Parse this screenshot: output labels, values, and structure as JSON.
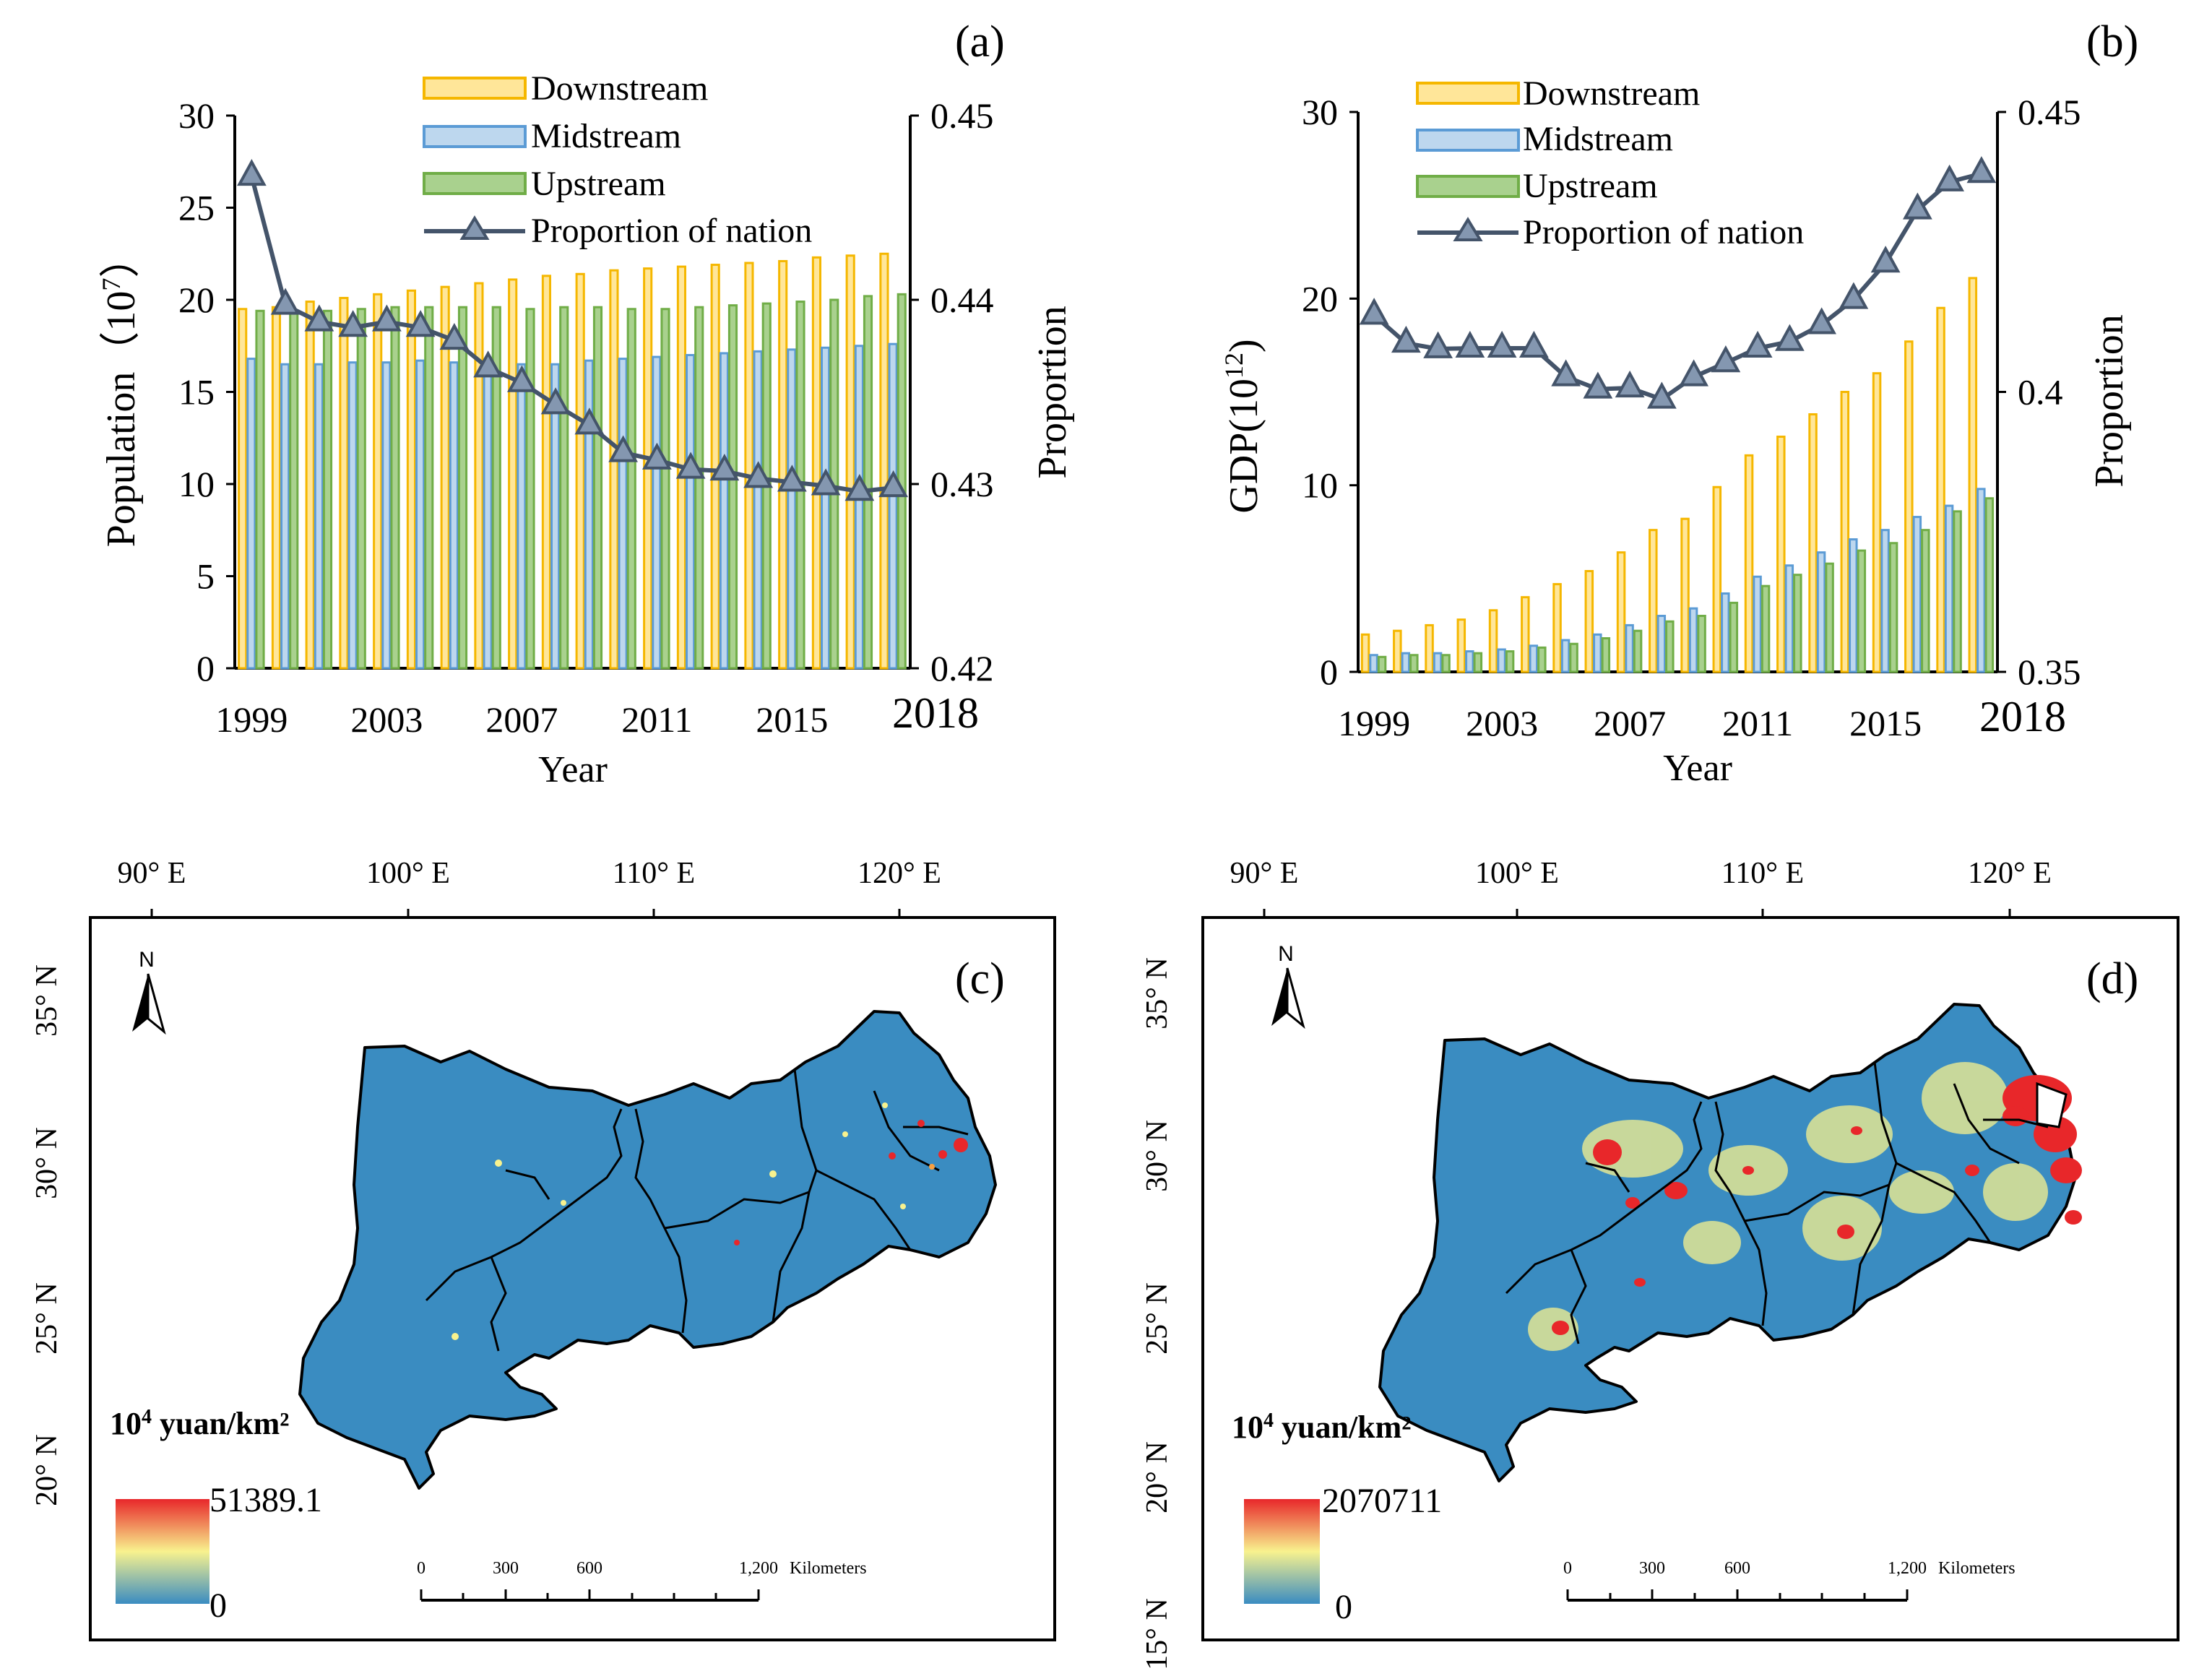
{
  "colors": {
    "downstream_fill": "#FFE699",
    "downstream_edge": "#F5B700",
    "midstream_fill": "#BDD7EE",
    "midstream_edge": "#5B9BD5",
    "upstream_fill": "#A9D18E",
    "upstream_edge": "#70AD47",
    "proportion_line": "#44546A",
    "proportion_marker": "#8497B0",
    "map_base": "#3A8CC1",
    "ramp_high": "#E8272A",
    "ramp_mid": "#F8F28E",
    "ramp_low": "#3A8CC1"
  },
  "chart_data": [
    {
      "panel": "(a)",
      "type": "bar",
      "categories": [
        "1999",
        "2000",
        "2001",
        "2002",
        "2003",
        "2004",
        "2005",
        "2006",
        "2007",
        "2008",
        "2009",
        "2010",
        "2011",
        "2012",
        "2013",
        "2014",
        "2015",
        "2016",
        "2017",
        "2018"
      ],
      "tick_labels": [
        "1999",
        "2003",
        "2007",
        "2011",
        "2015",
        "2018"
      ],
      "series": [
        {
          "name": "Downstream",
          "values": [
            19.5,
            19.6,
            19.9,
            20.1,
            20.3,
            20.5,
            20.7,
            20.9,
            21.1,
            21.3,
            21.4,
            21.6,
            21.7,
            21.8,
            21.9,
            22.0,
            22.1,
            22.3,
            22.4,
            22.5
          ]
        },
        {
          "name": "Midstream",
          "values": [
            16.8,
            16.5,
            16.5,
            16.6,
            16.6,
            16.7,
            16.6,
            16.5,
            16.5,
            16.5,
            16.7,
            16.8,
            16.9,
            17.0,
            17.1,
            17.2,
            17.3,
            17.4,
            17.5,
            17.6
          ]
        },
        {
          "name": "Upstream",
          "values": [
            19.4,
            19.4,
            19.4,
            19.5,
            19.6,
            19.6,
            19.6,
            19.6,
            19.5,
            19.6,
            19.6,
            19.5,
            19.5,
            19.6,
            19.7,
            19.8,
            19.9,
            20.0,
            20.2,
            20.3
          ]
        }
      ],
      "line": {
        "name": "Proportion of nation",
        "values": [
          0.4467,
          0.4397,
          0.4388,
          0.4385,
          0.4388,
          0.4385,
          0.4378,
          0.4363,
          0.4355,
          0.4343,
          0.4332,
          0.4317,
          0.4313,
          0.4308,
          0.4307,
          0.4303,
          0.4301,
          0.4299,
          0.4296,
          0.4298
        ]
      },
      "xlabel": "Year",
      "ylabel": "Population（10⁷）",
      "ylabel_base": "Population（10",
      "ylabel_exp": "7",
      "ylabel_close": "）",
      "y2label": "Proportion",
      "ylim": [
        0,
        30
      ],
      "yticks": [
        "0",
        "5",
        "10",
        "15",
        "20",
        "25",
        "30"
      ],
      "y2lim": [
        0.42,
        0.45
      ],
      "y2ticks": [
        "0.42",
        "0.43",
        "0.44",
        "0.45"
      ],
      "legend": [
        "Downstream",
        "Midstream",
        "Upstream",
        "Proportion of nation"
      ],
      "legend_position": "top-center"
    },
    {
      "panel": "(b)",
      "type": "bar",
      "categories": [
        "1999",
        "2000",
        "2001",
        "2002",
        "2003",
        "2004",
        "2005",
        "2006",
        "2007",
        "2008",
        "2009",
        "2010",
        "2011",
        "2012",
        "2013",
        "2014",
        "2015",
        "2016",
        "2017",
        "2018"
      ],
      "tick_labels": [
        "1999",
        "2003",
        "2007",
        "2011",
        "2015",
        "2018"
      ],
      "series": [
        {
          "name": "Downstream",
          "values": [
            2.0,
            2.2,
            2.5,
            2.8,
            3.3,
            4.0,
            4.7,
            5.4,
            6.4,
            7.6,
            8.2,
            9.9,
            11.6,
            12.6,
            13.8,
            15.0,
            16.0,
            17.7,
            19.5,
            21.1
          ]
        },
        {
          "name": "Midstream",
          "values": [
            0.9,
            1.0,
            1.0,
            1.1,
            1.2,
            1.4,
            1.7,
            2.0,
            2.5,
            3.0,
            3.4,
            4.2,
            5.1,
            5.7,
            6.4,
            7.1,
            7.6,
            8.3,
            8.9,
            9.8
          ]
        },
        {
          "name": "Upstream",
          "values": [
            0.8,
            0.9,
            0.9,
            1.0,
            1.1,
            1.3,
            1.5,
            1.8,
            2.2,
            2.7,
            3.0,
            3.7,
            4.6,
            5.2,
            5.8,
            6.5,
            6.9,
            7.6,
            8.6,
            9.3
          ]
        }
      ],
      "line": {
        "name": "Proportion of nation",
        "values": [
          0.4137,
          0.4087,
          0.4077,
          0.4078,
          0.4078,
          0.4078,
          0.4027,
          0.4005,
          0.4007,
          0.3987,
          0.4027,
          0.4052,
          0.4078,
          0.409,
          0.412,
          0.4165,
          0.423,
          0.4325,
          0.4375,
          0.439
        ]
      },
      "xlabel": "Year",
      "ylabel": "GDP(10¹²)",
      "ylabel_base": "GDP(10",
      "ylabel_exp": "12",
      "ylabel_close": ")",
      "y2label": "Proportion",
      "ylim": [
        0,
        30
      ],
      "yticks": [
        "0",
        "10",
        "20",
        "30"
      ],
      "y2lim": [
        0.35,
        0.45
      ],
      "y2ticks": [
        "0.35",
        "0.4",
        "0.45"
      ],
      "legend": [
        "Downstream",
        "Midstream",
        "Upstream",
        "Proportion of nation"
      ],
      "legend_position": "top-center"
    }
  ],
  "maps": [
    {
      "panel": "(c)",
      "lon_labels": [
        "90° E",
        "100° E",
        "110° E",
        "120° E"
      ],
      "lat_labels": [
        "35° N",
        "30° N",
        "25° N",
        "20° N"
      ],
      "north_label": "N",
      "unit_base": "10",
      "unit_exp": "4",
      "unit_rest": " yuan/km²",
      "legend_max": "51389.1",
      "legend_min": "0",
      "scale_labels": [
        "0",
        "300",
        "600",
        "1,200"
      ],
      "scale_unit": "Kilometers"
    },
    {
      "panel": "(d)",
      "lon_labels": [
        "90° E",
        "100° E",
        "110° E",
        "120° E"
      ],
      "lat_labels": [
        "35° N",
        "30° N",
        "25° N",
        "20° N",
        "15° N"
      ],
      "north_label": "N",
      "unit_base": "10",
      "unit_exp": "4",
      "unit_rest": " yuan/km²",
      "legend_max": "2070711",
      "legend_min": "0",
      "scale_labels": [
        "0",
        "300",
        "600",
        "1,200"
      ],
      "scale_unit": "Kilometers"
    }
  ]
}
